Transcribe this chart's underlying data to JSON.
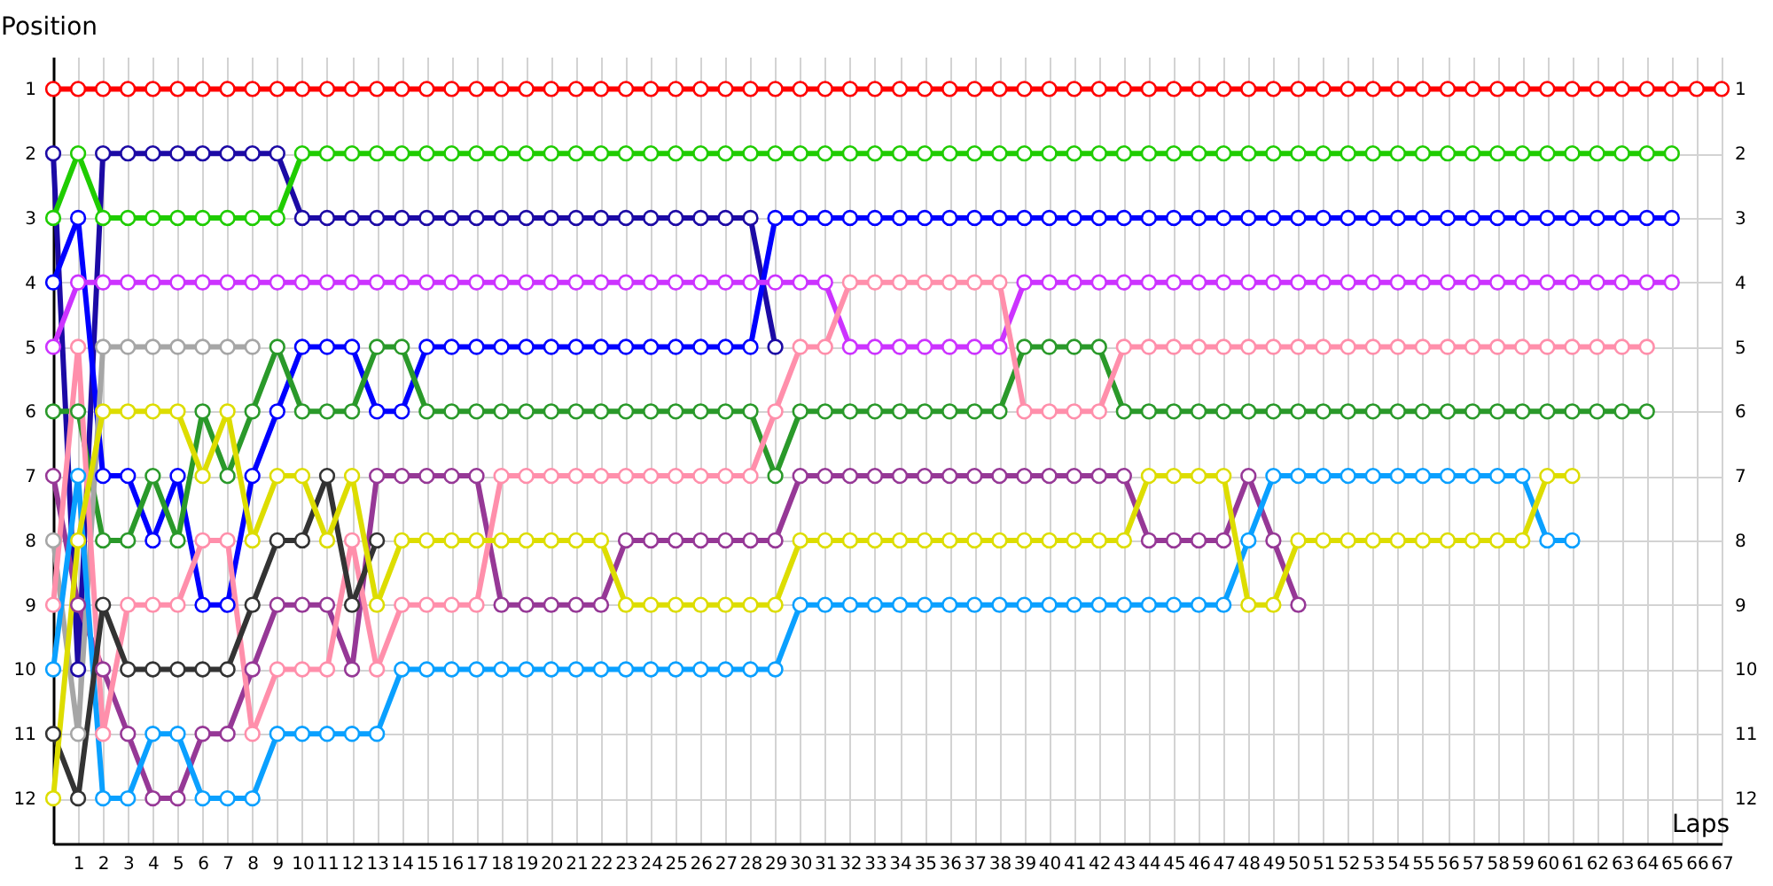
{
  "chart_data": {
    "type": "line",
    "xlabel": "Laps",
    "ylabel": "Position",
    "x": [
      0,
      1,
      2,
      3,
      4,
      5,
      6,
      7,
      8,
      9,
      10,
      11,
      12,
      13,
      14,
      15,
      16,
      17,
      18,
      19,
      20,
      21,
      22,
      23,
      24,
      25,
      26,
      27,
      28,
      29,
      30,
      31,
      32,
      33,
      34,
      35,
      36,
      37,
      38,
      39,
      40,
      41,
      42,
      43,
      44,
      45,
      46,
      47,
      48,
      49,
      50,
      51,
      52,
      53,
      54,
      55,
      56,
      57,
      58,
      59,
      60,
      61,
      62,
      63,
      64,
      65,
      66,
      67
    ],
    "xlim": [
      0,
      67
    ],
    "xticks": [
      1,
      2,
      3,
      4,
      5,
      6,
      7,
      8,
      9,
      10,
      11,
      12,
      13,
      14,
      15,
      16,
      17,
      18,
      19,
      20,
      21,
      22,
      23,
      24,
      25,
      26,
      27,
      28,
      29,
      30,
      31,
      32,
      33,
      34,
      35,
      36,
      37,
      38,
      39,
      40,
      41,
      42,
      43,
      44,
      45,
      46,
      47,
      48,
      49,
      50,
      51,
      52,
      53,
      54,
      55,
      56,
      57,
      58,
      59,
      60,
      61,
      62,
      63,
      64,
      65,
      66,
      67
    ],
    "ylim": [
      12.7,
      0.5
    ],
    "yticks": [
      1,
      2,
      3,
      4,
      5,
      6,
      7,
      8,
      9,
      10,
      11,
      12
    ],
    "y2lim": [
      12.7,
      0.5
    ],
    "y2ticks": [
      1,
      2,
      3,
      4,
      5,
      6,
      7,
      8,
      9,
      10,
      11,
      12
    ],
    "grid": true,
    "marker": "circle",
    "line_style": "solid",
    "series": [
      {
        "color": "#ff0000",
        "values": [
          1,
          1,
          1,
          1,
          1,
          1,
          1,
          1,
          1,
          1,
          1,
          1,
          1,
          1,
          1,
          1,
          1,
          1,
          1,
          1,
          1,
          1,
          1,
          1,
          1,
          1,
          1,
          1,
          1,
          1,
          1,
          1,
          1,
          1,
          1,
          1,
          1,
          1,
          1,
          1,
          1,
          1,
          1,
          1,
          1,
          1,
          1,
          1,
          1,
          1,
          1,
          1,
          1,
          1,
          1,
          1,
          1,
          1,
          1,
          1,
          1,
          1,
          1,
          1,
          1,
          1,
          1,
          1
        ]
      },
      {
        "color": "#1c0aa5",
        "values": [
          2,
          10,
          2,
          2,
          2,
          2,
          2,
          2,
          2,
          2,
          3,
          3,
          3,
          3,
          3,
          3,
          3,
          3,
          3,
          3,
          3,
          3,
          3,
          3,
          3,
          3,
          3,
          3,
          3,
          5,
          null,
          null,
          null,
          null,
          null,
          null,
          null,
          null,
          null,
          null,
          null,
          null,
          null,
          null,
          null,
          null,
          null,
          null,
          null,
          null,
          null,
          null,
          null,
          null,
          null,
          null,
          null,
          null,
          null,
          null,
          null,
          null,
          null,
          null,
          null,
          null,
          null,
          null
        ]
      },
      {
        "color": "#1fcc00",
        "values": [
          3,
          2,
          3,
          3,
          3,
          3,
          3,
          3,
          3,
          3,
          2,
          2,
          2,
          2,
          2,
          2,
          2,
          2,
          2,
          2,
          2,
          2,
          2,
          2,
          2,
          2,
          2,
          2,
          2,
          2,
          2,
          2,
          2,
          2,
          2,
          2,
          2,
          2,
          2,
          2,
          2,
          2,
          2,
          2,
          2,
          2,
          2,
          2,
          2,
          2,
          2,
          2,
          2,
          2,
          2,
          2,
          2,
          2,
          2,
          2,
          2,
          2,
          2,
          2,
          2,
          2,
          null,
          null
        ]
      },
      {
        "color": "#0000ff",
        "values": [
          4,
          3,
          7,
          7,
          8,
          7,
          9,
          9,
          7,
          6,
          5,
          5,
          5,
          6,
          6,
          5,
          5,
          5,
          5,
          5,
          5,
          5,
          5,
          5,
          5,
          5,
          5,
          5,
          5,
          3,
          3,
          3,
          3,
          3,
          3,
          3,
          3,
          3,
          3,
          3,
          3,
          3,
          3,
          3,
          3,
          3,
          3,
          3,
          3,
          3,
          3,
          3,
          3,
          3,
          3,
          3,
          3,
          3,
          3,
          3,
          3,
          3,
          3,
          3,
          3,
          3,
          null,
          null
        ]
      },
      {
        "color": "#cc33ff",
        "values": [
          5,
          4,
          4,
          4,
          4,
          4,
          4,
          4,
          4,
          4,
          4,
          4,
          4,
          4,
          4,
          4,
          4,
          4,
          4,
          4,
          4,
          4,
          4,
          4,
          4,
          4,
          4,
          4,
          4,
          4,
          4,
          4,
          5,
          5,
          5,
          5,
          5,
          5,
          5,
          4,
          4,
          4,
          4,
          4,
          4,
          4,
          4,
          4,
          4,
          4,
          4,
          4,
          4,
          4,
          4,
          4,
          4,
          4,
          4,
          4,
          4,
          4,
          4,
          4,
          4,
          4,
          null,
          null
        ]
      },
      {
        "color": "#2a992a",
        "values": [
          6,
          6,
          8,
          8,
          7,
          8,
          6,
          7,
          6,
          5,
          6,
          6,
          6,
          5,
          5,
          6,
          6,
          6,
          6,
          6,
          6,
          6,
          6,
          6,
          6,
          6,
          6,
          6,
          6,
          7,
          6,
          6,
          6,
          6,
          6,
          6,
          6,
          6,
          6,
          5,
          5,
          5,
          5,
          6,
          6,
          6,
          6,
          6,
          6,
          6,
          6,
          6,
          6,
          6,
          6,
          6,
          6,
          6,
          6,
          6,
          6,
          6,
          6,
          6,
          6,
          null,
          null,
          null
        ]
      },
      {
        "color": "#963896",
        "values": [
          7,
          9,
          10,
          11,
          12,
          12,
          11,
          11,
          10,
          9,
          9,
          9,
          10,
          7,
          7,
          7,
          7,
          7,
          9,
          9,
          9,
          9,
          9,
          8,
          8,
          8,
          8,
          8,
          8,
          8,
          7,
          7,
          7,
          7,
          7,
          7,
          7,
          7,
          7,
          7,
          7,
          7,
          7,
          7,
          8,
          8,
          8,
          8,
          7,
          8,
          9,
          null,
          null,
          null,
          null,
          null,
          null,
          null,
          null,
          null,
          null,
          null,
          null,
          null,
          null,
          null,
          null,
          null
        ]
      },
      {
        "color": "#a6a6a6",
        "values": [
          8,
          11,
          5,
          5,
          5,
          5,
          5,
          5,
          5,
          null,
          null,
          null,
          null,
          null,
          null,
          null,
          null,
          null,
          null,
          null,
          null,
          null,
          null,
          null,
          null,
          null,
          null,
          null,
          null,
          null,
          null,
          null,
          null,
          null,
          null,
          null,
          null,
          null,
          null,
          null,
          null,
          null,
          null,
          null,
          null,
          null,
          null,
          null,
          null,
          null,
          null,
          null,
          null,
          null,
          null,
          null,
          null,
          null,
          null,
          null,
          null,
          null,
          null,
          null,
          null,
          null,
          null,
          null
        ]
      },
      {
        "color": "#ff8fab",
        "values": [
          9,
          5,
          11,
          9,
          9,
          9,
          8,
          8,
          11,
          10,
          10,
          10,
          8,
          10,
          9,
          9,
          9,
          9,
          7,
          7,
          7,
          7,
          7,
          7,
          7,
          7,
          7,
          7,
          7,
          6,
          5,
          5,
          4,
          4,
          4,
          4,
          4,
          4,
          4,
          6,
          6,
          6,
          6,
          5,
          5,
          5,
          5,
          5,
          5,
          5,
          5,
          5,
          5,
          5,
          5,
          5,
          5,
          5,
          5,
          5,
          5,
          5,
          5,
          5,
          5,
          null,
          null,
          null
        ]
      },
      {
        "color": "#0aa0ff",
        "values": [
          10,
          7,
          12,
          12,
          11,
          11,
          12,
          12,
          12,
          11,
          11,
          11,
          11,
          11,
          10,
          10,
          10,
          10,
          10,
          10,
          10,
          10,
          10,
          10,
          10,
          10,
          10,
          10,
          10,
          10,
          9,
          9,
          9,
          9,
          9,
          9,
          9,
          9,
          9,
          9,
          9,
          9,
          9,
          9,
          9,
          9,
          9,
          9,
          8,
          7,
          7,
          7,
          7,
          7,
          7,
          7,
          7,
          7,
          7,
          7,
          8,
          8,
          null,
          null,
          null,
          null,
          null,
          null
        ]
      },
      {
        "color": "#333333",
        "values": [
          11,
          12,
          9,
          10,
          10,
          10,
          10,
          10,
          9,
          8,
          8,
          7,
          9,
          8,
          null,
          null,
          null,
          null,
          null,
          null,
          null,
          null,
          null,
          null,
          null,
          null,
          null,
          null,
          null,
          null,
          null,
          null,
          null,
          null,
          null,
          null,
          null,
          null,
          null,
          null,
          null,
          null,
          null,
          null,
          null,
          null,
          null,
          null,
          null,
          null,
          null,
          null,
          null,
          null,
          null,
          null,
          null,
          null,
          null,
          null,
          null,
          null,
          null,
          null,
          null,
          null,
          null,
          null
        ]
      },
      {
        "color": "#dddd00",
        "values": [
          12,
          8,
          6,
          6,
          6,
          6,
          7,
          6,
          8,
          7,
          7,
          8,
          7,
          9,
          8,
          8,
          8,
          8,
          8,
          8,
          8,
          8,
          8,
          9,
          9,
          9,
          9,
          9,
          9,
          9,
          8,
          8,
          8,
          8,
          8,
          8,
          8,
          8,
          8,
          8,
          8,
          8,
          8,
          8,
          7,
          7,
          7,
          7,
          9,
          9,
          8,
          8,
          8,
          8,
          8,
          8,
          8,
          8,
          8,
          8,
          7,
          7,
          null,
          null,
          null,
          null,
          null,
          null
        ]
      }
    ]
  }
}
